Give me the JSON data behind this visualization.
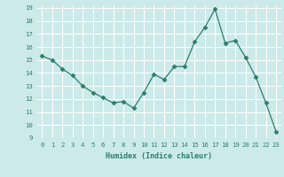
{
  "x": [
    0,
    1,
    2,
    3,
    4,
    5,
    6,
    7,
    8,
    9,
    10,
    11,
    12,
    13,
    14,
    15,
    16,
    17,
    18,
    19,
    20,
    21,
    22,
    23
  ],
  "y": [
    15.3,
    15.0,
    14.3,
    13.8,
    13.0,
    12.5,
    12.1,
    11.7,
    11.8,
    11.3,
    12.5,
    13.9,
    13.5,
    14.5,
    14.5,
    16.4,
    17.5,
    18.9,
    16.3,
    16.5,
    15.2,
    13.7,
    11.7,
    9.5
  ],
  "xlabel": "Humidex (Indice chaleur)",
  "ylim": [
    9,
    19.2
  ],
  "xlim": [
    -0.5,
    23.5
  ],
  "yticks": [
    9,
    10,
    11,
    12,
    13,
    14,
    15,
    16,
    17,
    18,
    19
  ],
  "xticks": [
    0,
    1,
    2,
    3,
    4,
    5,
    6,
    7,
    8,
    9,
    10,
    11,
    12,
    13,
    14,
    15,
    16,
    17,
    18,
    19,
    20,
    21,
    22,
    23
  ],
  "line_color": "#2d7d6e",
  "marker": "D",
  "marker_size": 2.5,
  "bg_color": "#cceaea",
  "grid_color": "#ffffff",
  "xlabel_fontsize": 6.0,
  "tick_fontsize": 5.2
}
